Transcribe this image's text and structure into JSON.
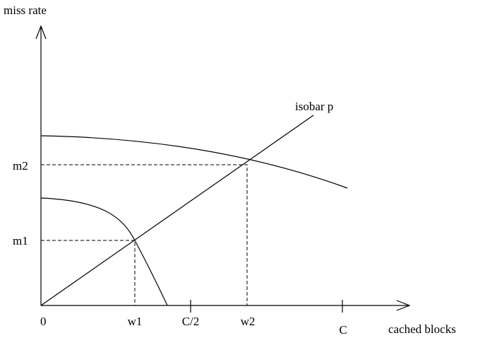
{
  "axes": {
    "y_label": "miss rate",
    "x_label": "cached blocks",
    "origin": "0"
  },
  "x_ticks": [
    "w1",
    "C/2",
    "w2",
    "C"
  ],
  "y_ticks": [
    "m1",
    "m2"
  ],
  "line_label": "isobar p"
}
